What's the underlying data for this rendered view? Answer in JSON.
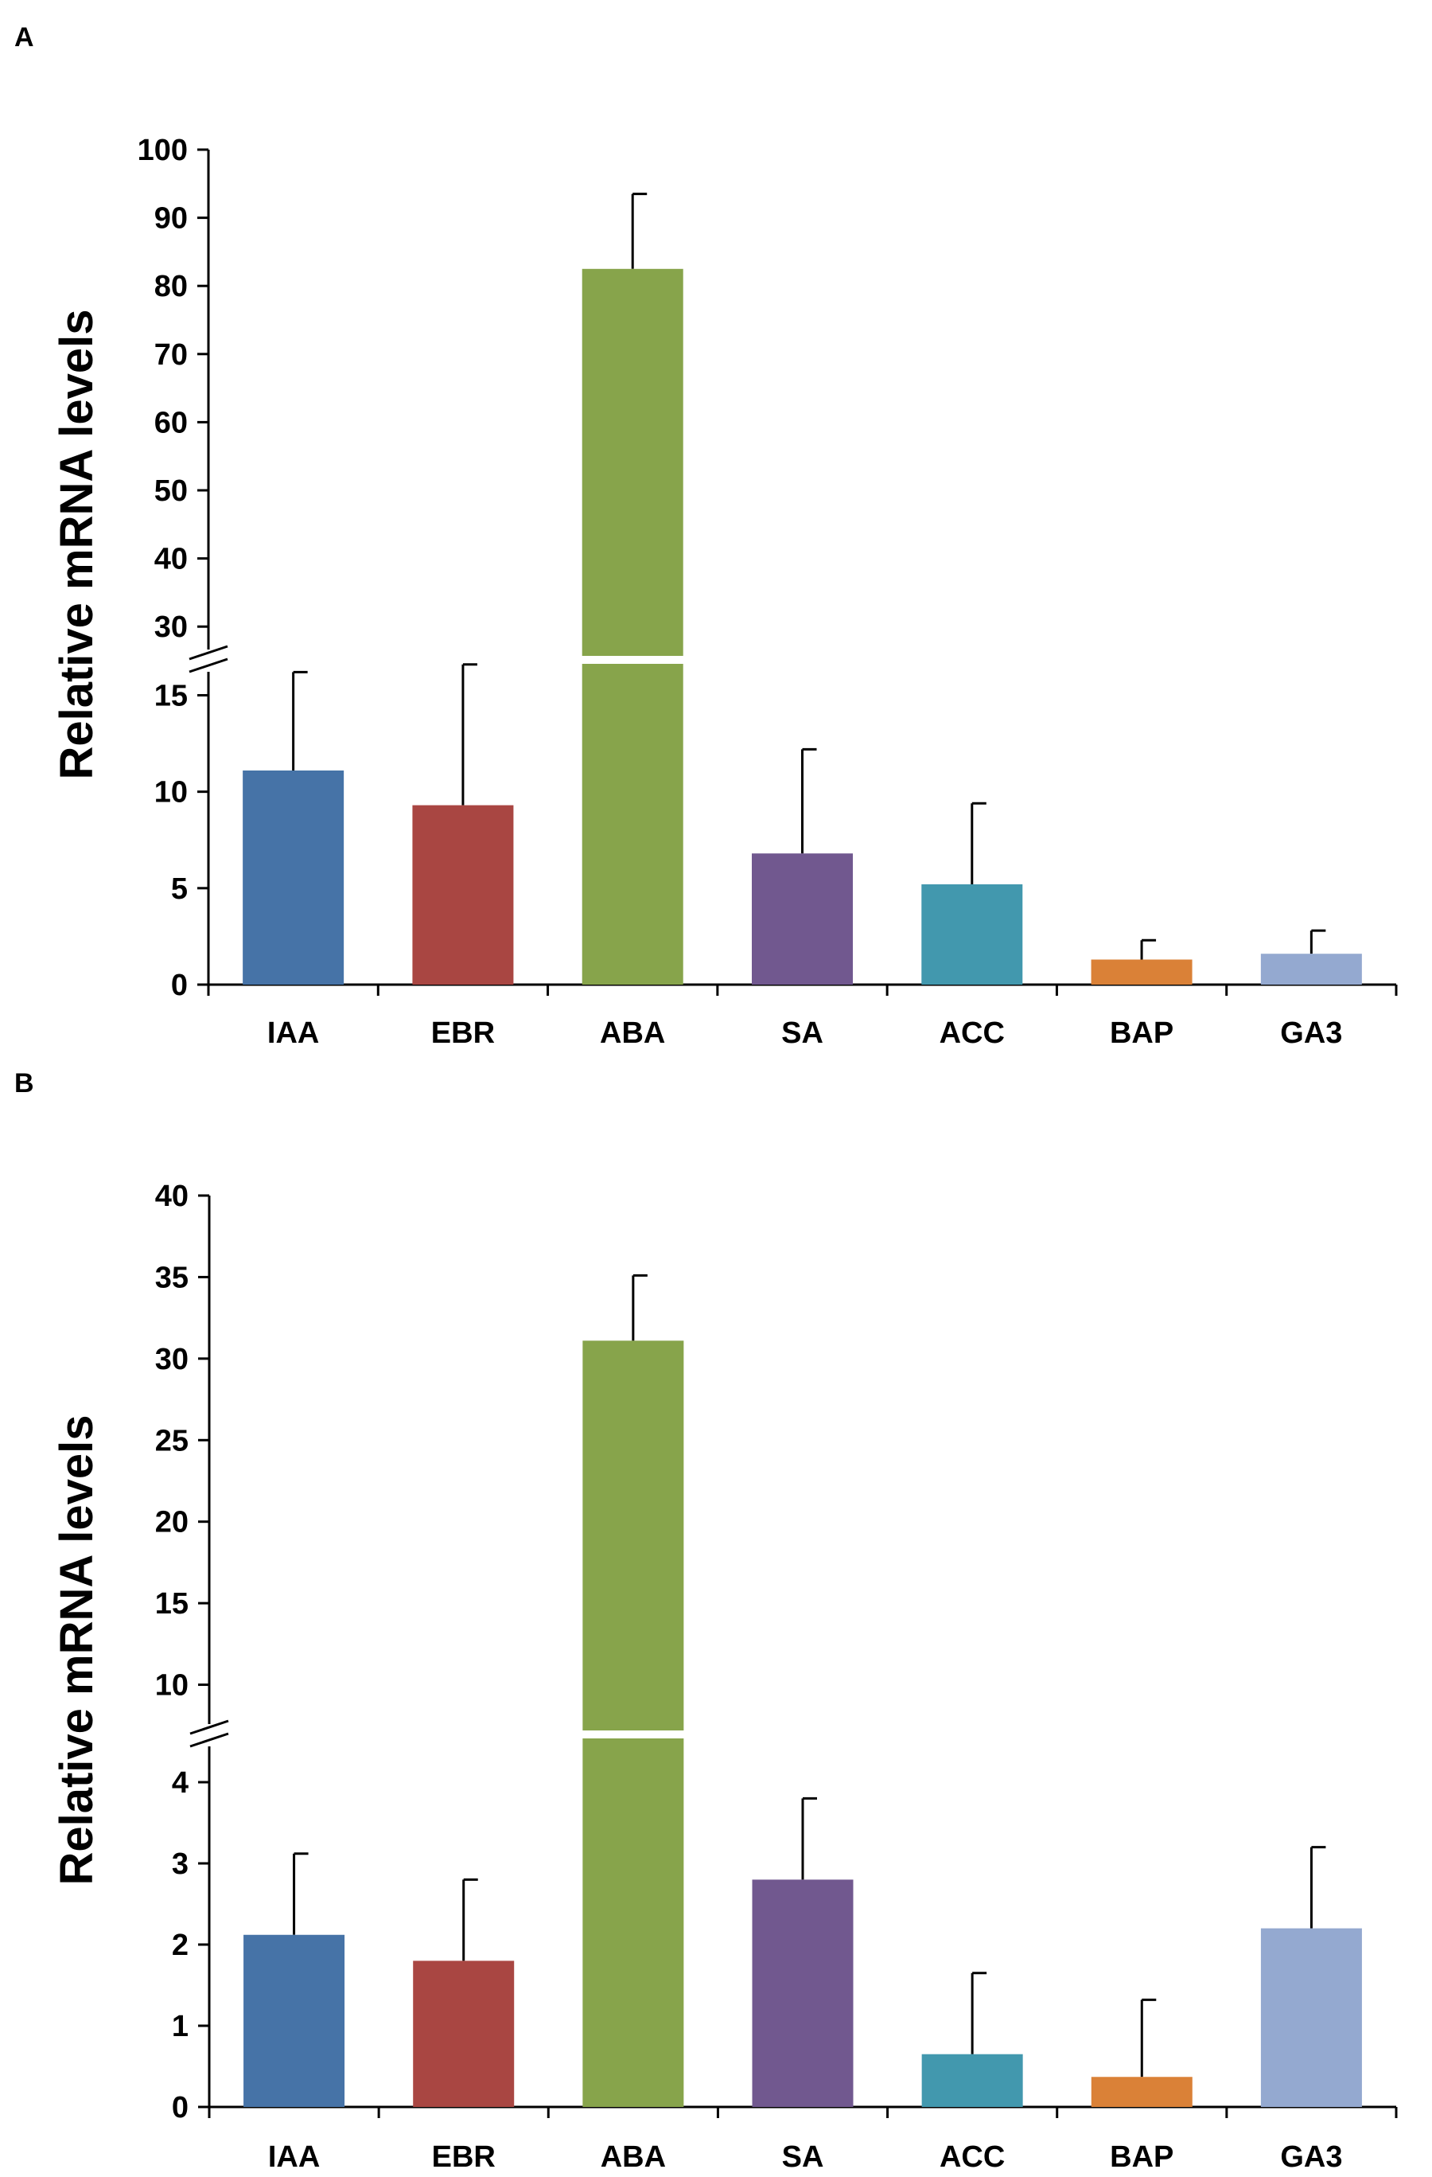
{
  "figure": {
    "panels": [
      "A",
      "B"
    ]
  },
  "colors": {
    "IAA": "#4673A7",
    "EBR": "#A94642",
    "ABA": "#87A44B",
    "SA": "#71588F",
    "ACC": "#4298AE",
    "BAP": "#DA8137",
    "GA3": "#94A9D0",
    "axis": "#000000",
    "background": "#FFFFFF"
  },
  "chart_data": [
    {
      "type": "bar",
      "panel": "A",
      "title": "",
      "xlabel": "",
      "ylabel": "Relative mRNA levels",
      "categories": [
        "IAA",
        "EBR",
        "ABA",
        "SA",
        "ACC",
        "BAP",
        "GA3"
      ],
      "values": [
        11.1,
        9.3,
        82.5,
        6.8,
        5.2,
        1.3,
        1.6
      ],
      "error_plus": [
        5.1,
        7.3,
        11.0,
        5.4,
        4.2,
        1.0,
        1.2
      ],
      "axis_break": {
        "lower_range": [
          0,
          17
        ],
        "upper_range": [
          25,
          100
        ]
      },
      "lower_ticks": [
        "0",
        "5",
        "10",
        "15"
      ],
      "upper_ticks": [
        "30",
        "40",
        "50",
        "60",
        "70",
        "80",
        "90",
        "100"
      ],
      "grid": false,
      "legend": "none"
    },
    {
      "type": "bar",
      "panel": "B",
      "title": "",
      "xlabel": "",
      "ylabel": "Relative mRNA levels",
      "categories": [
        "IAA",
        "EBR",
        "ABA",
        "SA",
        "ACC",
        "BAP",
        "GA3"
      ],
      "values": [
        2.12,
        1.8,
        31.1,
        2.8,
        0.65,
        0.37,
        2.2
      ],
      "error_plus": [
        1.0,
        1.0,
        4.0,
        1.0,
        1.0,
        0.95,
        1.0
      ],
      "axis_break": {
        "lower_range": [
          0,
          4.5
        ],
        "upper_range": [
          7,
          40
        ]
      },
      "lower_ticks": [
        "0",
        "1",
        "2",
        "3",
        "4"
      ],
      "upper_ticks": [
        "10",
        "15",
        "20",
        "25",
        "30",
        "35",
        "40"
      ],
      "grid": false,
      "legend": "none"
    }
  ]
}
